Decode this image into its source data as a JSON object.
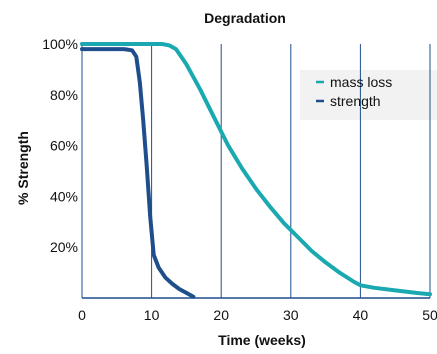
{
  "chart_data": {
    "type": "line",
    "title": "Degradation",
    "xlabel": "Time (weeks)",
    "ylabel": "% Strength",
    "xlim": [
      0,
      50
    ],
    "ylim": [
      0,
      100
    ],
    "x_ticks": [
      0,
      10,
      20,
      30,
      40,
      50
    ],
    "x_tick_labels": [
      "0",
      "10",
      "20",
      "30",
      "40",
      "50"
    ],
    "y_ticks": [
      20,
      40,
      60,
      80,
      100
    ],
    "y_tick_labels": [
      "20%",
      "40%",
      "60%",
      "80%",
      "100%"
    ],
    "grid": "vertical lines at each x tick",
    "legend_position": "top-right",
    "series": [
      {
        "name": "mass loss",
        "color": "#1aa9b0",
        "points": [
          [
            0,
            100
          ],
          [
            5,
            100
          ],
          [
            10,
            100
          ],
          [
            11.5,
            100
          ],
          [
            12.5,
            99.5
          ],
          [
            13.5,
            98
          ],
          [
            15,
            92
          ],
          [
            17,
            82
          ],
          [
            19,
            71
          ],
          [
            21,
            60
          ],
          [
            23,
            51
          ],
          [
            25,
            43
          ],
          [
            27,
            36
          ],
          [
            29,
            29.5
          ],
          [
            31,
            24
          ],
          [
            33,
            18.5
          ],
          [
            35,
            14
          ],
          [
            37,
            10
          ],
          [
            39,
            6.5
          ],
          [
            40,
            5
          ],
          [
            42,
            4
          ],
          [
            45,
            3
          ],
          [
            48,
            2
          ],
          [
            50,
            1.5
          ]
        ]
      },
      {
        "name": "strength",
        "color": "#1f4e8c",
        "points": [
          [
            0,
            98
          ],
          [
            3,
            98
          ],
          [
            6,
            98
          ],
          [
            7.2,
            97.5
          ],
          [
            7.8,
            95
          ],
          [
            8.3,
            85
          ],
          [
            8.8,
            70
          ],
          [
            9.3,
            52
          ],
          [
            9.8,
            32
          ],
          [
            10.3,
            17
          ],
          [
            11,
            12
          ],
          [
            12,
            8
          ],
          [
            13,
            5.5
          ],
          [
            14,
            3.5
          ],
          [
            15,
            2
          ],
          [
            16,
            0.5
          ]
        ]
      }
    ]
  }
}
